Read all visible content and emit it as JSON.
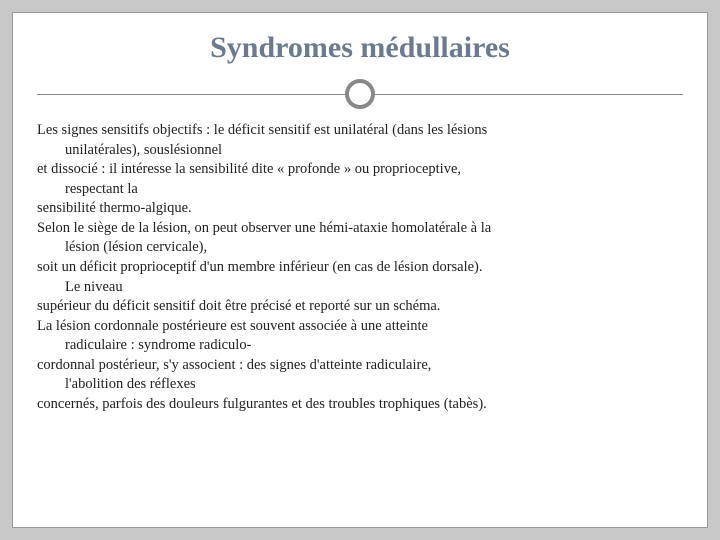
{
  "slide": {
    "title": "Syndromes médullaires",
    "background_color": "#ffffff",
    "outer_background": "#c8c8c8",
    "title_color": "#6b7a8f",
    "title_fontsize": 30,
    "body_fontsize": 14.5,
    "body_color": "#222222",
    "divider_color": "#888888",
    "lines": {
      "l1a": "Les signes sensitifs objectifs : le déficit sensitif est unilatéral (dans les lésions",
      "l1b": "unilatérales), souslésionnel",
      "l2a": "et dissocié : il intéresse la sensibilité dite « profonde » ou proprioceptive,",
      "l2b": "respectant la",
      "l3": "sensibilité thermo-algique.",
      "l4a": "Selon le siège de la lésion, on peut observer une hémi-ataxie homolatérale à la",
      "l4b": "lésion (lésion cervicale),",
      "l5a": "soit un déficit proprioceptif d'un membre inférieur (en cas de lésion dorsale).",
      "l5b": "Le niveau",
      "l6": "supérieur du déficit sensitif doit être précisé et reporté sur un schéma.",
      "l7a": "La lésion cordonnale postérieure est souvent associée à une atteinte",
      "l7b": "radiculaire : syndrome radiculo-",
      "l8a": "cordonnal postérieur, s'y associent : des signes d'atteinte radiculaire,",
      "l8b": "l'abolition des réflexes",
      "l9": "concernés, parfois des douleurs fulgurantes et des troubles trophiques (tabès)."
    }
  }
}
